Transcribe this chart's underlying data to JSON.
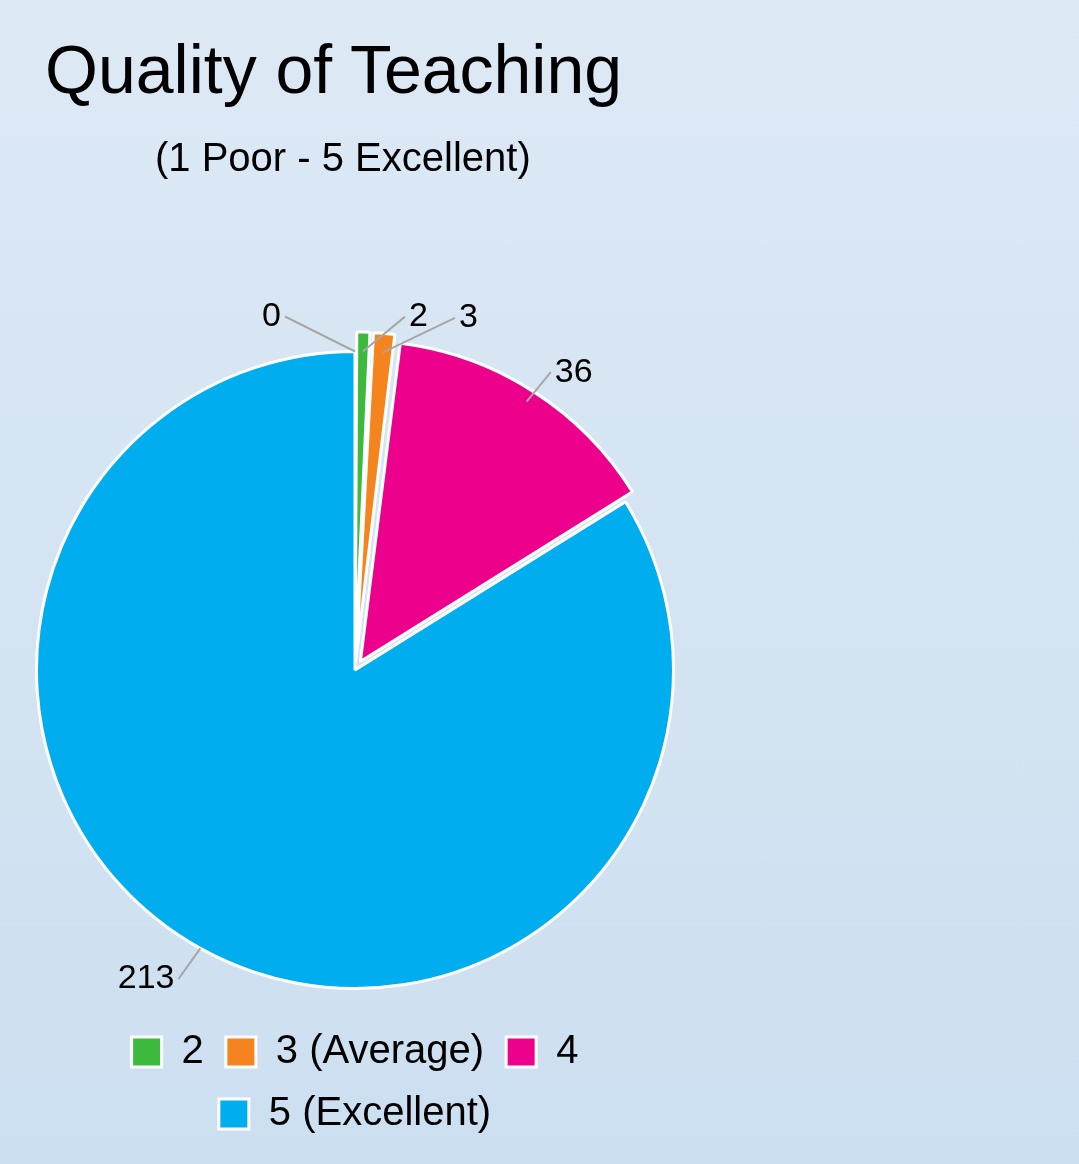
{
  "chart_data": {
    "type": "pie",
    "title": "Quality of Teaching",
    "subtitle": "(1 Poor - 5 Excellent)",
    "categories": [
      null,
      "2",
      "3 (Average)",
      "4",
      "5 (Excellent)"
    ],
    "values": [
      0,
      2,
      3,
      36,
      213
    ],
    "colors": [
      "#7f7f7f",
      "#3dba3d",
      "#f5841f",
      "#ec008c",
      "#00aeef"
    ],
    "value_labels": [
      "0",
      "2",
      "3",
      "36",
      "213"
    ],
    "legend": "bottom"
  }
}
